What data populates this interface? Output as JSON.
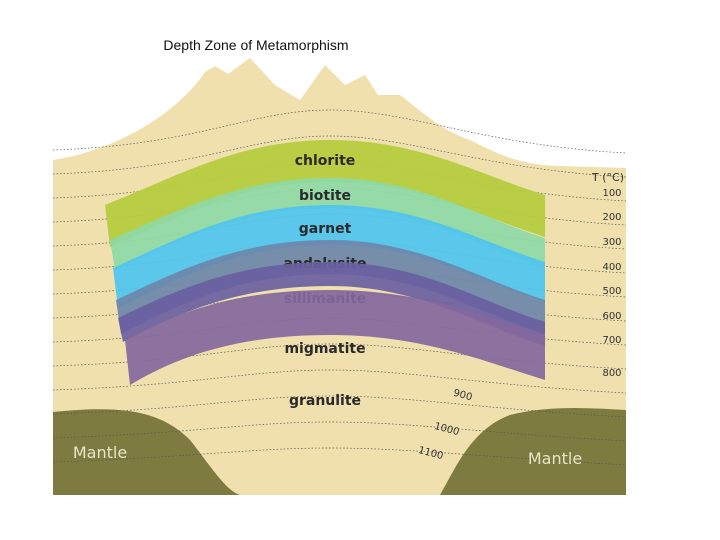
{
  "title": "Depth Zone of Metamorphism",
  "zones": [
    {
      "label": "chlorite"
    },
    {
      "label": "biotite"
    },
    {
      "label": "garnet"
    },
    {
      "label": "andalusite"
    },
    {
      "label": "sillimanite"
    },
    {
      "label": "migmatite"
    },
    {
      "label": "granulite"
    }
  ],
  "temperature": {
    "label": "T (°C)",
    "isotherms": [
      100,
      200,
      300,
      400,
      500,
      600,
      700,
      800,
      900,
      1000,
      1100
    ]
  },
  "mantle_labels": [
    "Mantle",
    "Mantle"
  ]
}
